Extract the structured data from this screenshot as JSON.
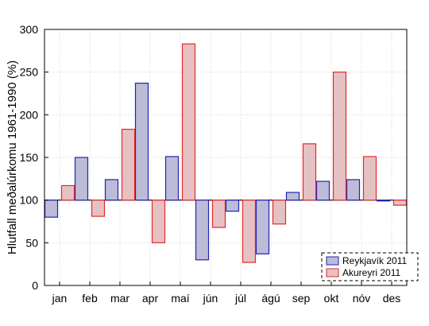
{
  "chart_data": {
    "type": "bar",
    "title": "",
    "xlabel": "",
    "ylabel": "Hlutfall meðalúrkomu 1961-1990 (%)",
    "ylim": [
      0,
      300
    ],
    "yticks": [
      0,
      50,
      100,
      150,
      200,
      250,
      300
    ],
    "baseline": 100,
    "grid": true,
    "legend_position": "bottom-right",
    "categories": [
      "jan",
      "feb",
      "mar",
      "apr",
      "maí",
      "jún",
      "júl",
      "ágú",
      "sep",
      "okt",
      "nóv",
      "des"
    ],
    "series": [
      {
        "name": "Reykjavík 2011",
        "fill": "#bcbcd8",
        "stroke": "#2323b4",
        "values": [
          80,
          150,
          124,
          237,
          151,
          30,
          87,
          37,
          109,
          122,
          124,
          99
        ]
      },
      {
        "name": "Akureyri 2011",
        "fill": "#e6c1c4",
        "stroke": "#e42a2a",
        "values": [
          117,
          81,
          183,
          50,
          283,
          68,
          27,
          72,
          166,
          250,
          151,
          94
        ]
      }
    ]
  }
}
